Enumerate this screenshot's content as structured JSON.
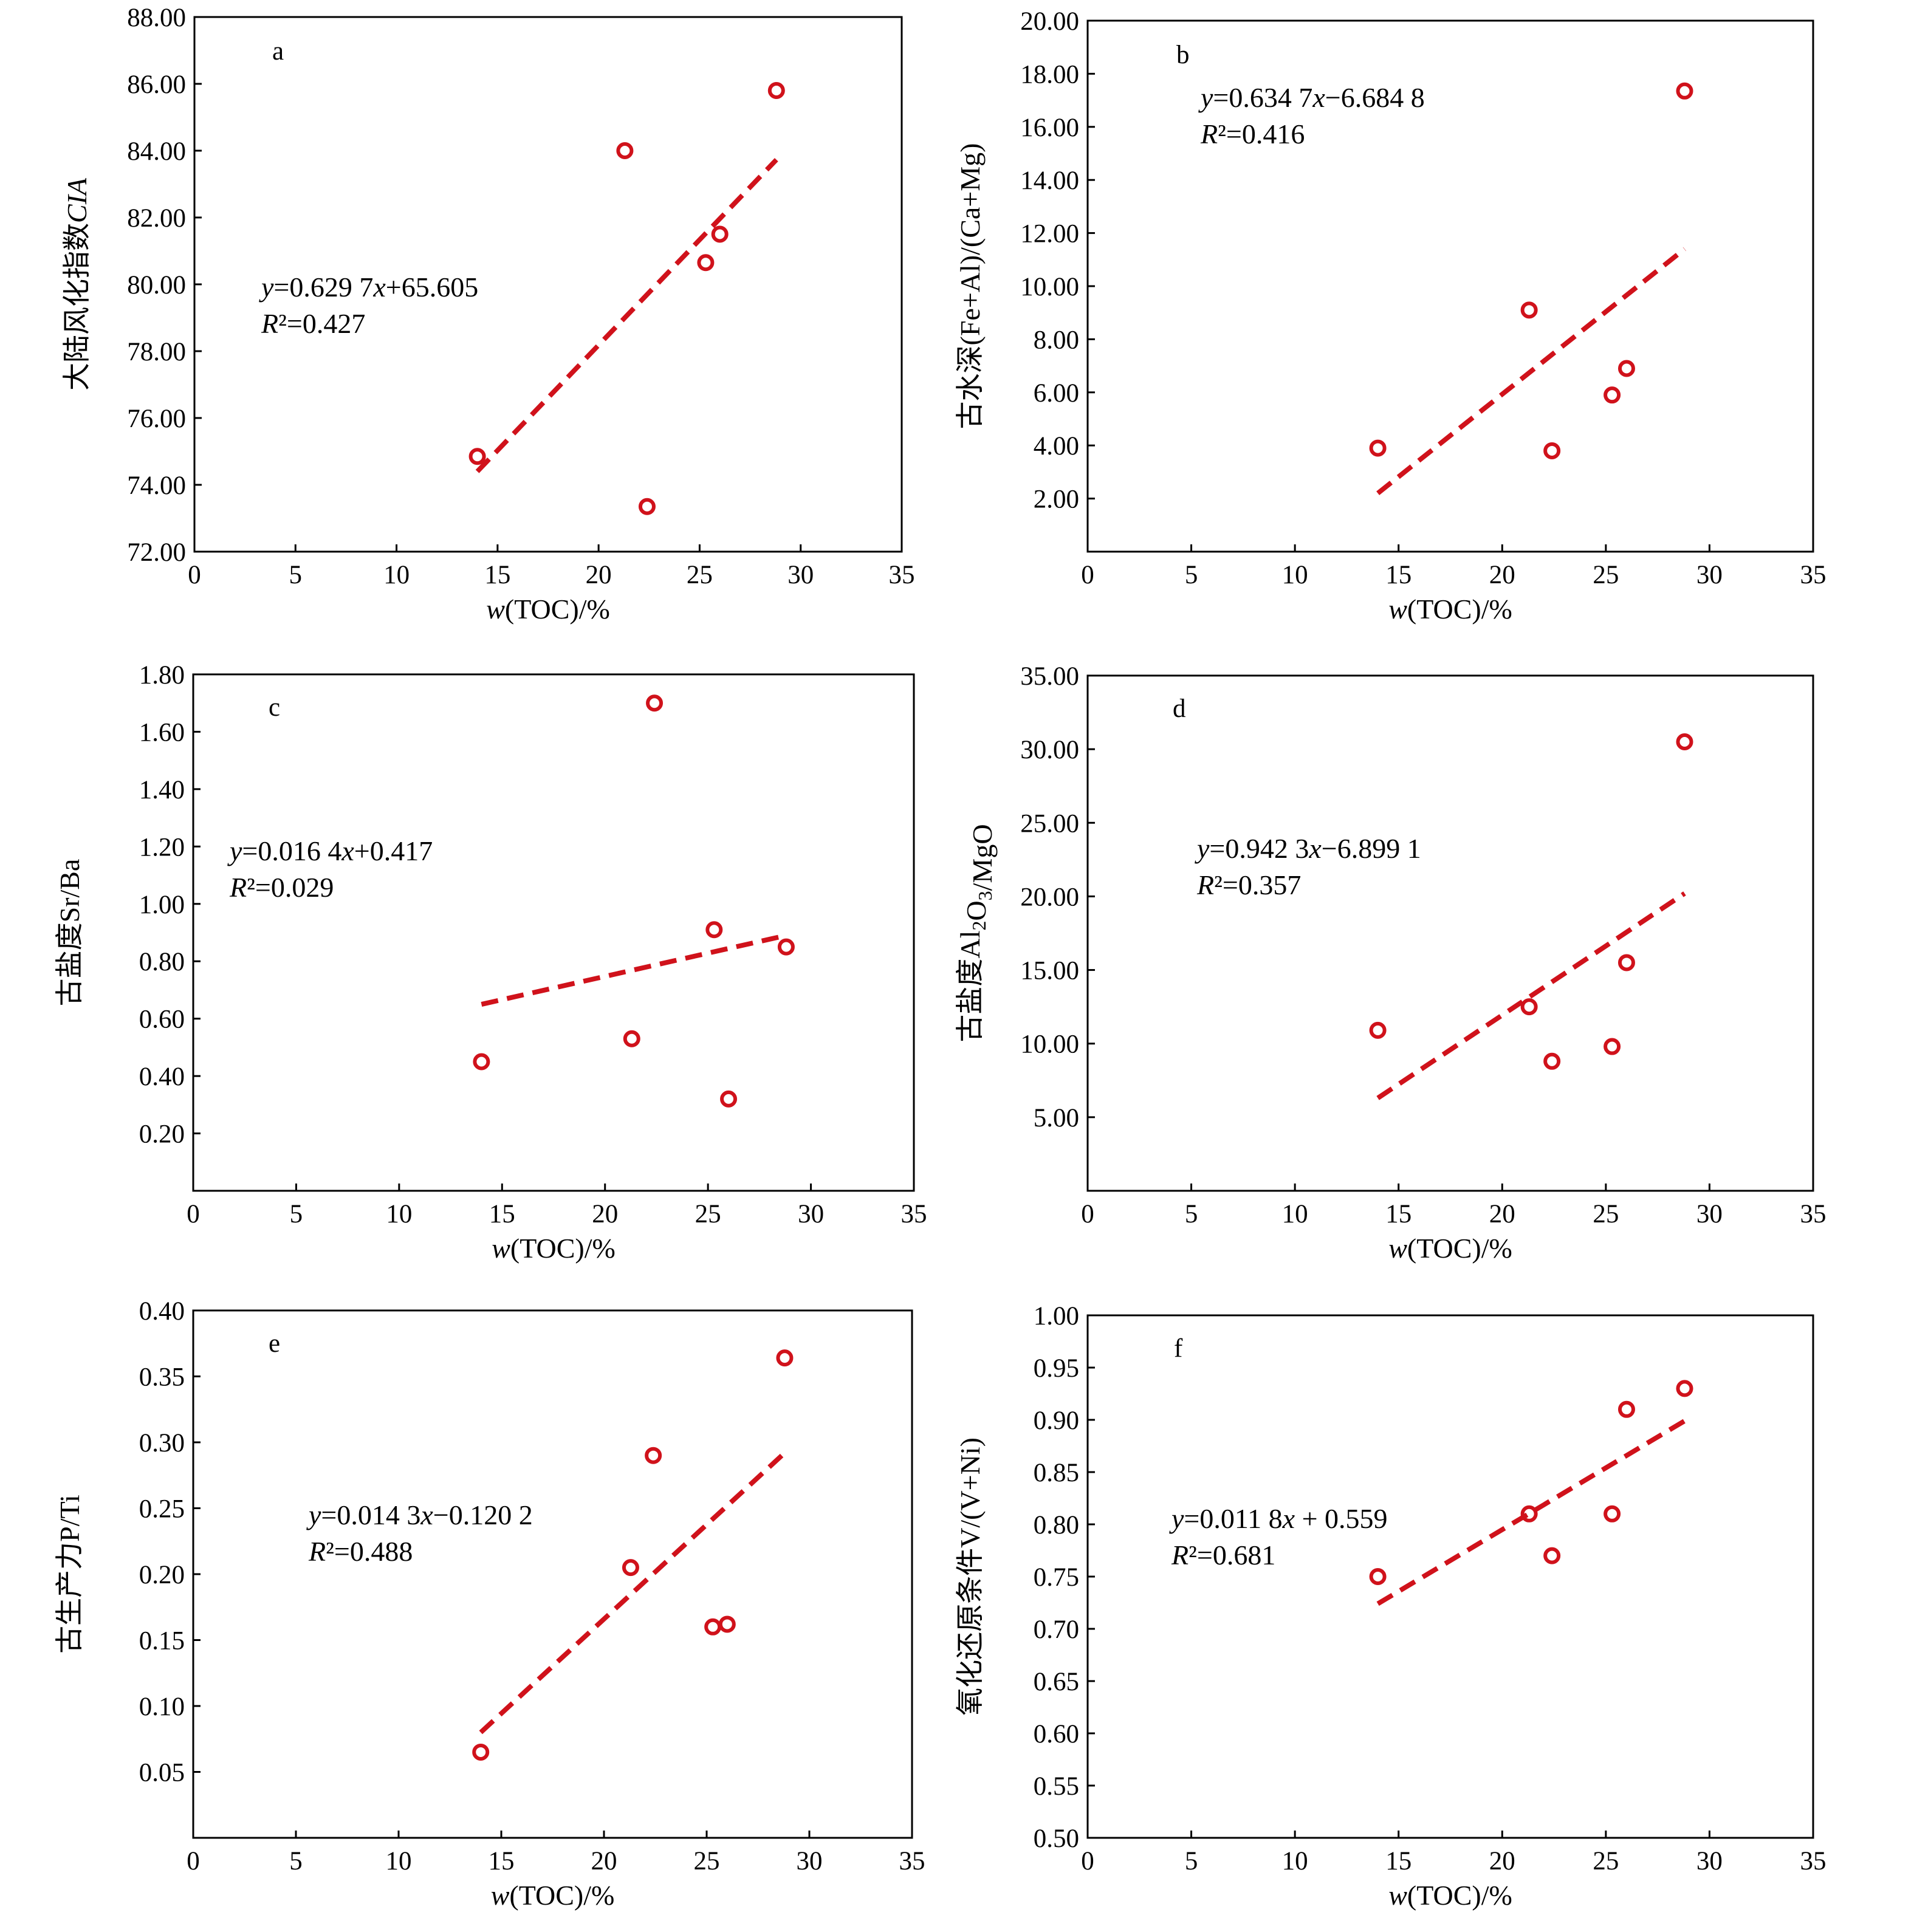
{
  "chart_data": [
    {
      "type": "scatter",
      "panel_label": "a",
      "xlabel": "w(TOC)/%",
      "ylabel": "大陆风化指数CIA",
      "xlim": [
        0,
        35
      ],
      "ylim": [
        72,
        88
      ],
      "x_ticks": [
        "0",
        "5",
        "10",
        "15",
        "20",
        "25",
        "30",
        "35"
      ],
      "y_ticks": [
        "72.00",
        "74.00",
        "76.00",
        "78.00",
        "80.00",
        "82.00",
        "84.00",
        "86.00",
        "88.00"
      ],
      "points": [
        [
          14.0,
          74.85
        ],
        [
          21.3,
          84.0
        ],
        [
          22.4,
          73.35
        ],
        [
          25.3,
          80.65
        ],
        [
          26.0,
          81.5
        ],
        [
          28.8,
          85.8
        ]
      ],
      "trendline": {
        "x": [
          14.0,
          28.8
        ],
        "y": [
          74.4,
          83.73
        ],
        "equation": "y=0.629 7x+65.605",
        "r2": "R²=0.427"
      },
      "grid": false,
      "legend": "none"
    },
    {
      "type": "scatter",
      "panel_label": "b",
      "xlabel": "w(TOC)/%",
      "ylabel": "古水深(Fe+Al)/(Ca+Mg)",
      "xlim": [
        0,
        35
      ],
      "ylim": [
        0,
        20
      ],
      "x_ticks": [
        "0",
        "5",
        "10",
        "15",
        "20",
        "25",
        "30",
        "35"
      ],
      "y_ticks": [
        "2.00",
        "4.00",
        "6.00",
        "8.00",
        "10.00",
        "12.00",
        "14.00",
        "16.00",
        "18.00",
        "20.00"
      ],
      "points": [
        [
          14.0,
          3.9
        ],
        [
          21.3,
          9.1
        ],
        [
          22.4,
          3.8
        ],
        [
          25.3,
          5.9
        ],
        [
          26.0,
          6.9
        ],
        [
          28.8,
          17.35
        ]
      ],
      "trendline": {
        "x": [
          14.0,
          28.8
        ],
        "y": [
          2.2,
          11.4
        ],
        "equation": "y=0.634 7x−6.684 8",
        "r2": "R²=0.416"
      },
      "grid": false,
      "legend": "none"
    },
    {
      "type": "scatter",
      "panel_label": "c",
      "xlabel": "w(TOC)/%",
      "ylabel": "古盐度Sr/Ba",
      "xlim": [
        0,
        35
      ],
      "ylim": [
        0,
        1.8
      ],
      "x_ticks": [
        "0",
        "5",
        "10",
        "15",
        "20",
        "25",
        "30",
        "35"
      ],
      "y_ticks": [
        "0.20",
        "0.40",
        "0.60",
        "0.80",
        "1.00",
        "1.20",
        "1.40",
        "1.60",
        "1.80"
      ],
      "points": [
        [
          14.0,
          0.45
        ],
        [
          21.3,
          0.53
        ],
        [
          22.4,
          1.7
        ],
        [
          25.3,
          0.91
        ],
        [
          26.0,
          0.32
        ],
        [
          28.8,
          0.85
        ]
      ],
      "trendline": {
        "x": [
          14.0,
          28.8
        ],
        "y": [
          0.65,
          0.89
        ],
        "equation": "y=0.016 4x+0.417",
        "r2": "R²=0.029"
      },
      "grid": false,
      "legend": "none"
    },
    {
      "type": "scatter",
      "panel_label": "d",
      "xlabel": "w(TOC)/%",
      "ylabel": "古盐度Al₂O₃/MgO",
      "xlim": [
        0,
        35
      ],
      "ylim": [
        0,
        35
      ],
      "x_ticks": [
        "0",
        "5",
        "10",
        "15",
        "20",
        "25",
        "30",
        "35"
      ],
      "y_ticks": [
        "5.00",
        "10.00",
        "15.00",
        "20.00",
        "25.00",
        "30.00",
        "35.00"
      ],
      "points": [
        [
          14.0,
          10.9
        ],
        [
          21.3,
          12.5
        ],
        [
          22.4,
          8.8
        ],
        [
          25.3,
          9.8
        ],
        [
          26.0,
          15.5
        ],
        [
          28.8,
          30.5
        ]
      ],
      "trendline": {
        "x": [
          14.0,
          28.8
        ],
        "y": [
          6.3,
          20.2
        ],
        "equation": "y=0.942 3x−6.899 1",
        "r2": "R²=0.357"
      },
      "grid": false,
      "legend": "none"
    },
    {
      "type": "scatter",
      "panel_label": "e",
      "xlabel": "w(TOC)/%",
      "ylabel": "古生产力P/Ti",
      "xlim": [
        0,
        35
      ],
      "ylim": [
        0,
        0.4
      ],
      "x_ticks": [
        "0",
        "5",
        "10",
        "15",
        "20",
        "25",
        "30",
        "35"
      ],
      "y_ticks": [
        "0.05",
        "0.10",
        "0.15",
        "0.20",
        "0.25",
        "0.30",
        "0.35",
        "0.40"
      ],
      "points": [
        [
          14.0,
          0.065
        ],
        [
          21.3,
          0.205
        ],
        [
          22.4,
          0.29
        ],
        [
          25.3,
          0.16
        ],
        [
          26.0,
          0.162
        ],
        [
          28.8,
          0.364
        ]
      ],
      "trendline": {
        "x": [
          14.0,
          28.8
        ],
        "y": [
          0.08,
          0.292
        ],
        "equation": "y=0.014 3x−0.120 2",
        "r2": "R²=0.488"
      },
      "grid": false,
      "legend": "none"
    },
    {
      "type": "scatter",
      "panel_label": "f",
      "xlabel": "w(TOC)/%",
      "ylabel": "氧化还原条件V/(V+Ni)",
      "xlim": [
        0,
        35
      ],
      "ylim": [
        0.5,
        1.0
      ],
      "x_ticks": [
        "0",
        "5",
        "10",
        "15",
        "20",
        "25",
        "30",
        "35"
      ],
      "y_ticks": [
        "0.50",
        "0.55",
        "0.60",
        "0.65",
        "0.70",
        "0.75",
        "0.80",
        "0.85",
        "0.90",
        "0.95",
        "1.00"
      ],
      "points": [
        [
          14.0,
          0.75
        ],
        [
          21.3,
          0.81
        ],
        [
          22.4,
          0.77
        ],
        [
          25.3,
          0.81
        ],
        [
          26.0,
          0.91
        ],
        [
          28.8,
          0.93
        ]
      ],
      "trendline": {
        "x": [
          14.0,
          28.8
        ],
        "y": [
          0.724,
          0.899
        ],
        "equation": "y=0.011 8x + 0.559",
        "r2": "R²=0.681"
      },
      "grid": false,
      "legend": "none"
    }
  ]
}
